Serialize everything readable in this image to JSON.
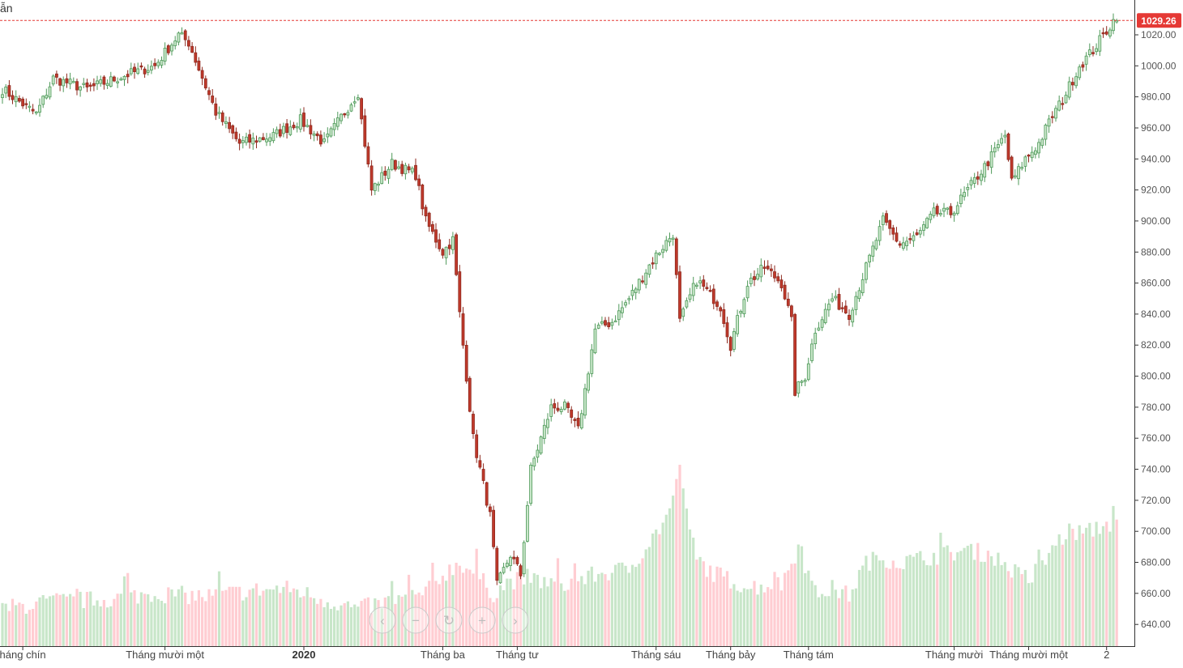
{
  "header": {
    "label": "ẫn"
  },
  "last_price": {
    "label": "1029.26",
    "value": 1029.26,
    "color": "#e53935"
  },
  "icons": [
    "chevron-left-icon",
    "minus-icon",
    "reset-icon",
    "plus-icon",
    "chevron-right-icon"
  ],
  "colors": {
    "up": "#4f9a5a",
    "up_fill": "#c8e6c9",
    "down": "#8e2a1f",
    "down_fill": "#c0392b",
    "vol_up": "#c8e6c9",
    "vol_down": "#ffcdd2",
    "axis": "#333333"
  },
  "chart_data": {
    "type": "candlestick",
    "ylim": [
      626,
      1032
    ],
    "y_ticks": [
      640,
      660,
      680,
      700,
      720,
      740,
      760,
      780,
      800,
      820,
      840,
      860,
      880,
      900,
      920,
      940,
      960,
      980,
      1000,
      1020
    ],
    "x_ticks": [
      {
        "label": "háng chín",
        "index": 6
      },
      {
        "label": "Tháng mười một",
        "index": 48
      },
      {
        "label": "2020",
        "index": 89,
        "bold": true
      },
      {
        "label": "Tháng ba",
        "index": 130
      },
      {
        "label": "Tháng tư",
        "index": 152
      },
      {
        "label": "Tháng sáu",
        "index": 193
      },
      {
        "label": "Tháng bảy",
        "index": 215
      },
      {
        "label": "Tháng tám",
        "index": 238
      },
      {
        "label": "Tháng mười",
        "index": 281
      },
      {
        "label": "Tháng mười một",
        "index": 303
      },
      {
        "label": "2",
        "index": 326
      }
    ],
    "close_anchors": [
      [
        0,
        985
      ],
      [
        10,
        969
      ],
      [
        15,
        992
      ],
      [
        25,
        985
      ],
      [
        35,
        993
      ],
      [
        45,
        1000
      ],
      [
        52,
        1020
      ],
      [
        55,
        1015
      ],
      [
        63,
        970
      ],
      [
        70,
        950
      ],
      [
        80,
        955
      ],
      [
        88,
        965
      ],
      [
        95,
        950
      ],
      [
        100,
        967
      ],
      [
        105,
        983
      ],
      [
        106,
        965
      ],
      [
        109,
        920
      ],
      [
        115,
        937
      ],
      [
        122,
        930
      ],
      [
        125,
        900
      ],
      [
        130,
        880
      ],
      [
        133,
        888
      ],
      [
        135,
        840
      ],
      [
        137,
        800
      ],
      [
        139,
        760
      ],
      [
        141,
        740
      ],
      [
        144,
        710
      ],
      [
        146,
        665
      ],
      [
        150,
        685
      ],
      [
        153,
        672
      ],
      [
        156,
        740
      ],
      [
        162,
        780
      ],
      [
        166,
        780
      ],
      [
        170,
        765
      ],
      [
        175,
        830
      ],
      [
        180,
        835
      ],
      [
        185,
        850
      ],
      [
        192,
        875
      ],
      [
        198,
        892
      ],
      [
        200,
        835
      ],
      [
        205,
        862
      ],
      [
        210,
        850
      ],
      [
        212,
        845
      ],
      [
        215,
        820
      ],
      [
        220,
        860
      ],
      [
        225,
        870
      ],
      [
        230,
        860
      ],
      [
        233,
        835
      ],
      [
        234,
        790
      ],
      [
        237,
        800
      ],
      [
        240,
        830
      ],
      [
        245,
        850
      ],
      [
        250,
        840
      ],
      [
        255,
        870
      ],
      [
        260,
        900
      ],
      [
        265,
        885
      ],
      [
        270,
        890
      ],
      [
        275,
        905
      ],
      [
        280,
        905
      ],
      [
        285,
        920
      ],
      [
        290,
        935
      ],
      [
        293,
        945
      ],
      [
        296,
        955
      ],
      [
        298,
        925
      ],
      [
        302,
        940
      ],
      [
        306,
        950
      ],
      [
        310,
        968
      ],
      [
        313,
        978
      ],
      [
        318,
        1000
      ],
      [
        322,
        1010
      ],
      [
        328,
        1029
      ]
    ],
    "volume_anchors": [
      [
        0,
        650
      ],
      [
        15,
        655
      ],
      [
        30,
        656
      ],
      [
        45,
        660
      ],
      [
        60,
        658
      ],
      [
        75,
        662
      ],
      [
        85,
        663
      ],
      [
        95,
        656
      ],
      [
        105,
        650
      ],
      [
        115,
        655
      ],
      [
        125,
        660
      ],
      [
        130,
        672
      ],
      [
        135,
        680
      ],
      [
        140,
        672
      ],
      [
        145,
        660
      ],
      [
        150,
        668
      ],
      [
        155,
        670
      ],
      [
        165,
        665
      ],
      [
        175,
        672
      ],
      [
        185,
        676
      ],
      [
        190,
        690
      ],
      [
        195,
        705
      ],
      [
        200,
        728
      ],
      [
        205,
        682
      ],
      [
        210,
        673
      ],
      [
        220,
        664
      ],
      [
        230,
        666
      ],
      [
        235,
        690
      ],
      [
        240,
        660
      ],
      [
        245,
        663
      ],
      [
        250,
        659
      ],
      [
        255,
        680
      ],
      [
        260,
        683
      ],
      [
        265,
        680
      ],
      [
        275,
        684
      ],
      [
        285,
        688
      ],
      [
        292,
        685
      ],
      [
        300,
        672
      ],
      [
        305,
        668
      ],
      [
        310,
        690
      ],
      [
        315,
        700
      ],
      [
        320,
        699
      ],
      [
        325,
        704
      ],
      [
        330,
        706
      ]
    ]
  }
}
